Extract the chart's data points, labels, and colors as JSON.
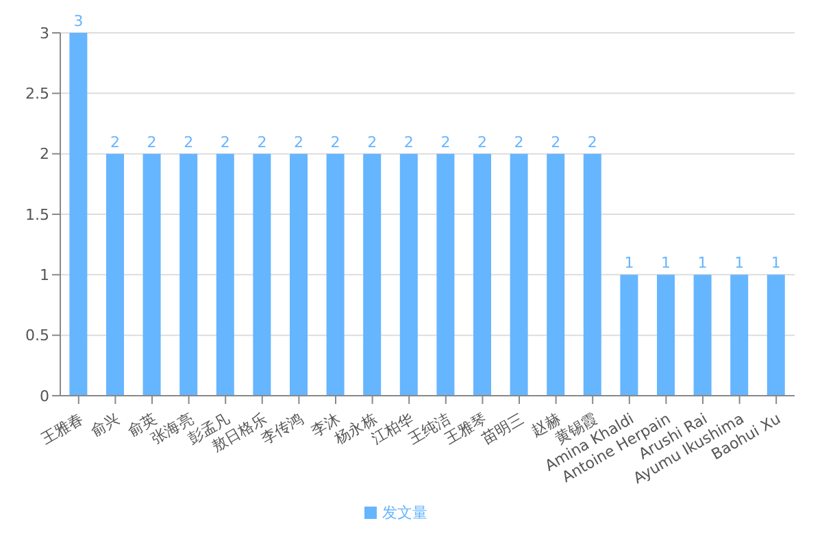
{
  "chart_data": {
    "type": "bar",
    "categories": [
      "王雅春",
      "俞兴",
      "俞英",
      "张海亮",
      "彭孟凡",
      "敖日格乐",
      "李传鸿",
      "李沐",
      "杨永栋",
      "江柏华",
      "王纯洁",
      "王雅琴",
      "苗明三",
      "赵赫",
      "黄锡霞",
      "Amina Khaldi",
      "Antoine Herpain",
      "Arushi Rai",
      "Ayumu Ikushima",
      "Baohui Xu"
    ],
    "series": [
      {
        "name": "发文量",
        "color": "#66b5ff",
        "values": [
          3,
          2,
          2,
          2,
          2,
          2,
          2,
          2,
          2,
          2,
          2,
          2,
          2,
          2,
          2,
          1,
          1,
          1,
          1,
          1
        ]
      }
    ],
    "ylim": [
      0,
      3
    ],
    "yticks": [
      0,
      0.5,
      1,
      1.5,
      2,
      2.5,
      3
    ],
    "grid": "y",
    "legend": "bottom",
    "data_labels": true
  }
}
